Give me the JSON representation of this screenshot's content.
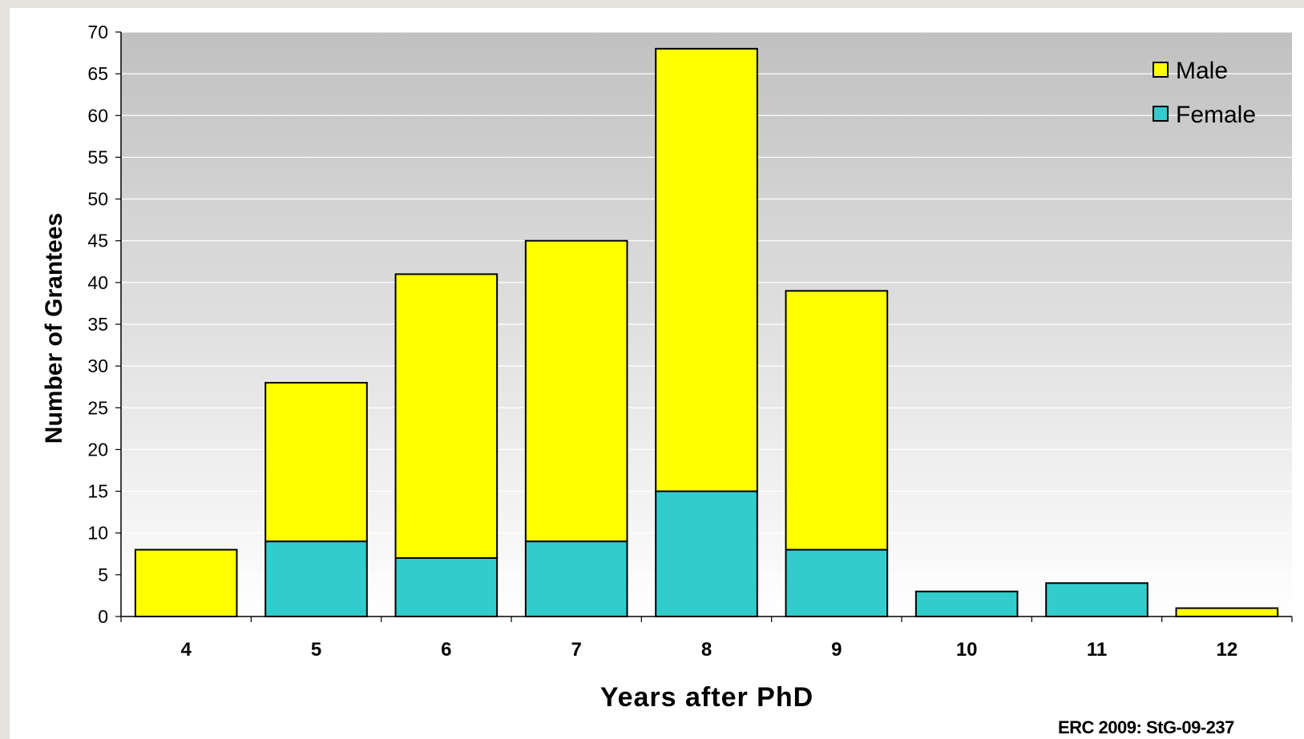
{
  "chart_data": {
    "type": "bar",
    "stacked": true,
    "title": "",
    "xlabel": "Years after PhD",
    "ylabel": "Number of Grantees",
    "categories": [
      "4",
      "5",
      "6",
      "7",
      "8",
      "9",
      "10",
      "11",
      "12"
    ],
    "series": [
      {
        "name": "Female",
        "color": "#33cccc",
        "values": [
          0,
          9,
          7,
          9,
          15,
          8,
          3,
          4,
          0
        ]
      },
      {
        "name": "Male",
        "color": "#ffff00",
        "values": [
          8,
          19,
          34,
          36,
          53,
          31,
          0,
          0,
          1
        ]
      }
    ],
    "ylim": [
      0,
      70
    ],
    "yticks": [
      "0",
      "5",
      "10",
      "15",
      "20",
      "25",
      "30",
      "35",
      "40",
      "45",
      "50",
      "55",
      "60",
      "65",
      "70"
    ],
    "grid": true,
    "legend": {
      "placement": "top-right",
      "entries": [
        "Male",
        "Female"
      ]
    },
    "plot_background": "gradient-gray-to-white"
  },
  "source_note": "ERC 2009: StG-09-237"
}
